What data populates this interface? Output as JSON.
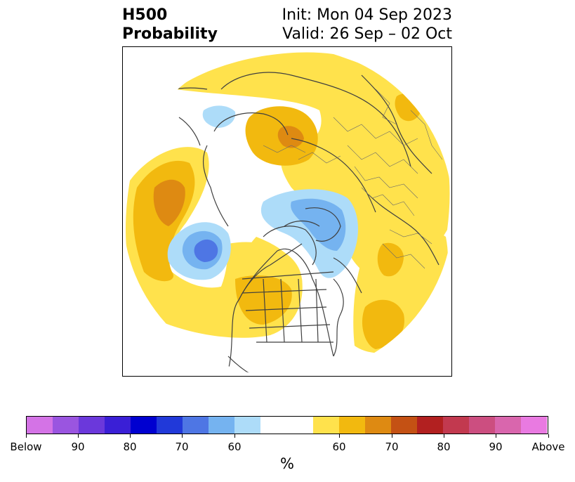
{
  "header": {
    "title_line1": "H500",
    "title_line2": "Probability",
    "init_label": "Init: Mon 04 Sep 2023",
    "valid_label": "Valid: 26 Sep – 02 Oct"
  },
  "map": {
    "projection": "north-polar-stereographic",
    "palette": {
      "above_60": "#ffe24c",
      "above_65": "#f2b90f",
      "above_70": "#de8a12",
      "below_60": "#addcf9",
      "below_65": "#75b3f0",
      "below_70": "#4e76e4",
      "ocean": "#ffffff",
      "borders": "#3f3f3f"
    }
  },
  "colorbar": {
    "colors": [
      "#d473e6",
      "#9a55e0",
      "#6b38db",
      "#3a1fd6",
      "#0000d0",
      "#2139d9",
      "#4e76e4",
      "#75b3f0",
      "#addcf9",
      "#ffffff",
      "#ffe24c",
      "#f2b90f",
      "#de8a12",
      "#c45114",
      "#b22020",
      "#c2394f",
      "#cc4e80",
      "#d966ad",
      "#e97ae1"
    ],
    "tick_labels": [
      "Below",
      "90",
      "80",
      "70",
      "60",
      "60",
      "70",
      "80",
      "90",
      "Above"
    ],
    "units": "%"
  }
}
